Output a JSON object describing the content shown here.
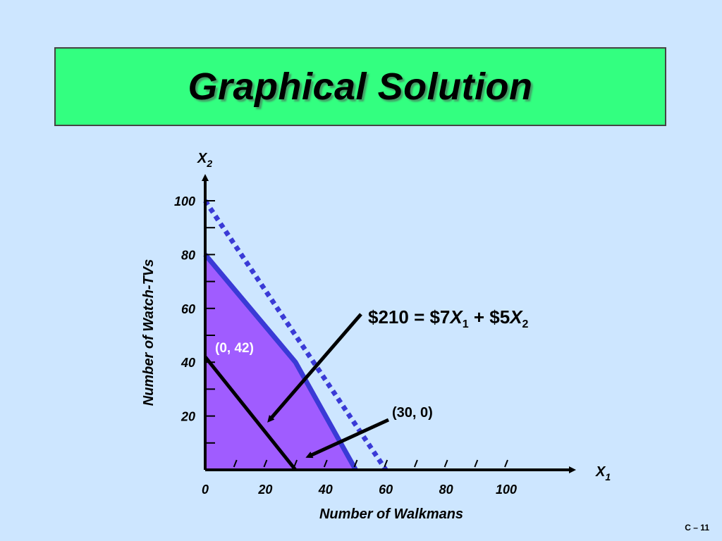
{
  "slide": {
    "title": "Graphical Solution",
    "page_number": "C – 11"
  },
  "colors": {
    "background": "#cde6ff",
    "title_bar": "#33ff80",
    "feasible_region": "#a05cff",
    "constraint_line": "#3a3ad6",
    "isoprofit_line": "#000000"
  },
  "chart_data": {
    "type": "line",
    "x_axis": {
      "label": "X",
      "subscript": "1",
      "title": "Number of Walkmans",
      "range": [
        0,
        120
      ],
      "tick_labels": [
        "0",
        "20",
        "40",
        "60",
        "80",
        "100"
      ],
      "tick_values": [
        0,
        20,
        40,
        60,
        80,
        100
      ],
      "minor_step": 10
    },
    "y_axis": {
      "label": "X",
      "subscript": "2",
      "title": "Number of Watch-TVs",
      "range": [
        0,
        105
      ],
      "tick_labels": [
        "20",
        "40",
        "60",
        "80",
        "100"
      ],
      "tick_values": [
        20,
        40,
        60,
        80,
        100
      ],
      "minor_step": 10
    },
    "feasible_region": [
      [
        0,
        0
      ],
      [
        0,
        80
      ],
      [
        30,
        40
      ],
      [
        50,
        0
      ]
    ],
    "series": [
      {
        "style": "solid-blue",
        "x": [
          0,
          30,
          50
        ],
        "y": [
          80,
          40,
          0
        ]
      },
      {
        "style": "dotted-blue",
        "x": [
          0,
          60
        ],
        "y": [
          100,
          0
        ]
      },
      {
        "style": "solid-black",
        "x": [
          0,
          30
        ],
        "y": [
          42,
          0
        ]
      }
    ],
    "annotations": [
      {
        "kind": "equation",
        "parts": [
          "$210 = $7",
          "X",
          "1",
          " + $5",
          "X",
          "2"
        ],
        "arrow_to": [
          20,
          17
        ]
      },
      {
        "kind": "point",
        "text": "(0, 42)",
        "at": [
          0,
          42
        ]
      },
      {
        "kind": "point",
        "text": "(30, 0)",
        "arrow_to": [
          33,
          4
        ]
      }
    ]
  }
}
